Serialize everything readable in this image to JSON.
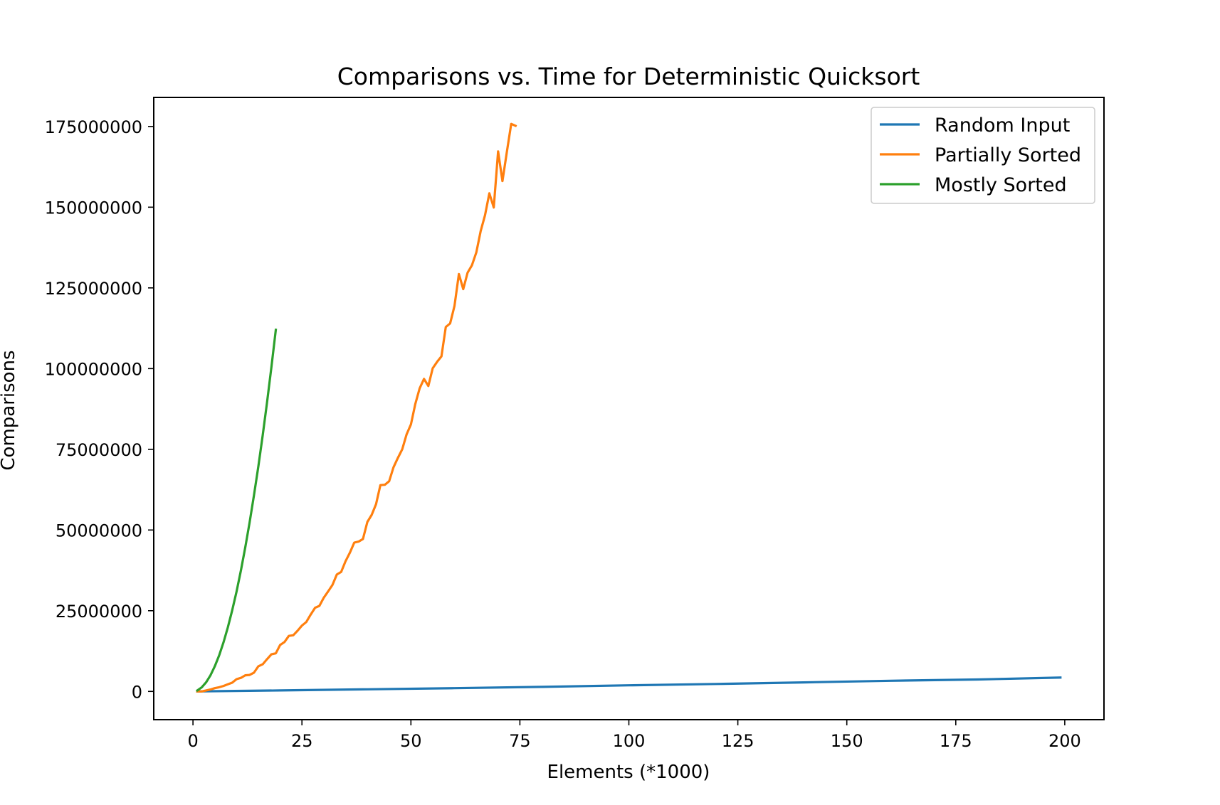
{
  "chart_data": {
    "type": "line",
    "title": "Comparisons vs. Time for Deterministic Quicksort",
    "xlabel": "Elements (*1000)",
    "ylabel": "Comparisons",
    "xlim": [
      -9,
      209
    ],
    "ylim": [
      -8750000,
      184000000
    ],
    "xticks": [
      0,
      25,
      50,
      75,
      100,
      125,
      150,
      175,
      200
    ],
    "yticks": [
      0,
      25000000,
      50000000,
      75000000,
      100000000,
      125000000,
      150000000,
      175000000
    ],
    "xtick_labels": [
      "0",
      "25",
      "50",
      "75",
      "100",
      "125",
      "150",
      "175",
      "200"
    ],
    "ytick_labels": [
      "0",
      "25000000",
      "50000000",
      "75000000",
      "100000000",
      "125000000",
      "150000000",
      "175000000"
    ],
    "grid": false,
    "legend_position": "top-right",
    "series": [
      {
        "name": "Random Input",
        "color": "#1f77b4",
        "x": [
          1,
          20,
          40,
          60,
          80,
          100,
          120,
          140,
          160,
          180,
          199
        ],
        "y": [
          10000,
          300000,
          650000,
          1000000,
          1400000,
          1900000,
          2300000,
          2800000,
          3300000,
          3700000,
          4300000
        ]
      },
      {
        "name": "Partially Sorted",
        "color": "#ff7f0e",
        "x": [
          1,
          2,
          3,
          4,
          5,
          6,
          7,
          8,
          9,
          10,
          11,
          12,
          13,
          14,
          15,
          16,
          17,
          18,
          19,
          20,
          21,
          22,
          23,
          24,
          25,
          26,
          27,
          28,
          29,
          30,
          31,
          32,
          33,
          34,
          35,
          36,
          37,
          38,
          39,
          40,
          41,
          42,
          43,
          44,
          45,
          46,
          47,
          48,
          49,
          50,
          51,
          52,
          53,
          54,
          55,
          56,
          57,
          58,
          59,
          60,
          61,
          62,
          63,
          64,
          65,
          66,
          67,
          68,
          69,
          70,
          71,
          72,
          73,
          74
        ],
        "y": [
          0,
          0,
          300000,
          600000,
          1000000,
          1300000,
          1700000,
          2200000,
          2700000,
          3800000,
          4200000,
          5000000,
          5100000,
          5800000,
          7800000,
          8400000,
          10000000,
          11500000,
          11800000,
          14400000,
          15300000,
          17200000,
          17400000,
          18800000,
          20400000,
          21500000,
          23800000,
          25900000,
          26500000,
          29000000,
          31000000,
          33000000,
          36200000,
          37000000,
          40300000,
          43000000,
          46100000,
          46400000,
          47200000,
          52500000,
          54700000,
          58000000,
          63900000,
          64000000,
          65100000,
          69400000,
          72300000,
          75000000,
          79600000,
          82700000,
          89000000,
          93900000,
          96800000,
          94600000,
          100100000,
          102100000,
          103800000,
          112900000,
          114000000,
          119400000,
          129300000,
          124600000,
          129700000,
          132000000,
          136000000,
          142600000,
          147500000,
          154300000,
          149900000,
          167300000,
          158100000,
          167000000,
          175800000,
          175200000
        ]
      },
      {
        "name": "Mostly Sorted",
        "color": "#2ca02c",
        "x": [
          1,
          2,
          3,
          4,
          5,
          6,
          7,
          8,
          9,
          10,
          11,
          12,
          13,
          14,
          15,
          16,
          17,
          18,
          19
        ],
        "y": [
          310000,
          1240000,
          2790000,
          4960000,
          7750000,
          11160000,
          15190000,
          19840000,
          25110000,
          31000000,
          37510000,
          44640000,
          52390000,
          60760000,
          69750000,
          79360000,
          89590000,
          100440000,
          112000000
        ]
      }
    ]
  }
}
